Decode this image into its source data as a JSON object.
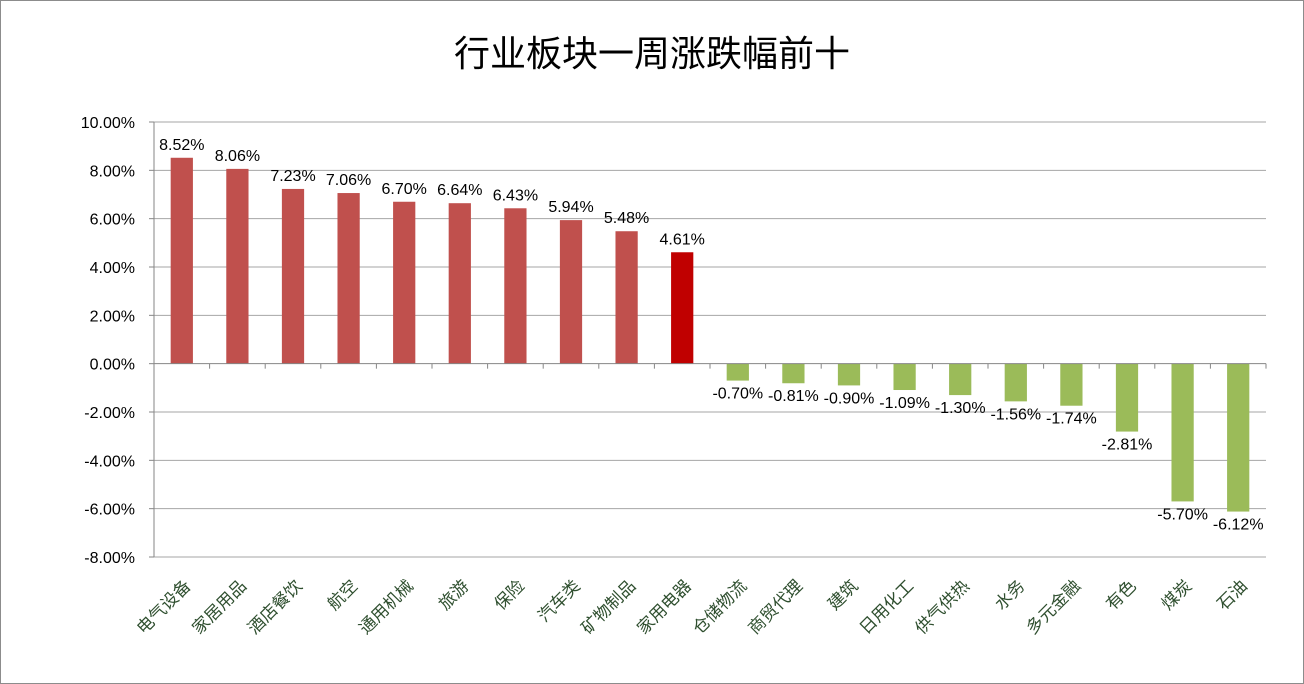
{
  "chart_data": {
    "type": "bar",
    "title": "行业板块一周涨跌幅前十",
    "categories": [
      "电气设备",
      "家居用品",
      "酒店餐饮",
      "航空",
      "通用机械",
      "旅游",
      "保险",
      "汽车类",
      "矿物制品",
      "家用电器",
      "仓储物流",
      "商贸代理",
      "建筑",
      "日用化工",
      "供气供热",
      "水务",
      "多元金融",
      "有色",
      "煤炭",
      "石油"
    ],
    "values": [
      8.52,
      8.06,
      7.23,
      7.06,
      6.7,
      6.64,
      6.43,
      5.94,
      5.48,
      4.61,
      -0.7,
      -0.81,
      -0.9,
      -1.09,
      -1.3,
      -1.56,
      -1.74,
      -2.81,
      -5.7,
      -6.12
    ],
    "data_labels": [
      "8.52%",
      "8.06%",
      "7.23%",
      "7.06%",
      "6.70%",
      "6.64%",
      "6.43%",
      "5.94%",
      "5.48%",
      "4.61%",
      "-0.70%",
      "-0.81%",
      "-0.90%",
      "-1.09%",
      "-1.30%",
      "-1.56%",
      "-1.74%",
      "-2.81%",
      "-5.70%",
      "-6.12%"
    ],
    "yticks": [
      "10.00%",
      "8.00%",
      "6.00%",
      "4.00%",
      "2.00%",
      "0.00%",
      "-2.00%",
      "-4.00%",
      "-6.00%",
      "-8.00%"
    ],
    "ylim": [
      -8,
      10
    ],
    "grid": true,
    "legend": "none",
    "colors": {
      "positive": "#c0504d",
      "highlight": "#c00000",
      "negative": "#9bbb59",
      "grid": "#a6a6a6",
      "axis": "#868686"
    },
    "highlight_index": 9
  }
}
